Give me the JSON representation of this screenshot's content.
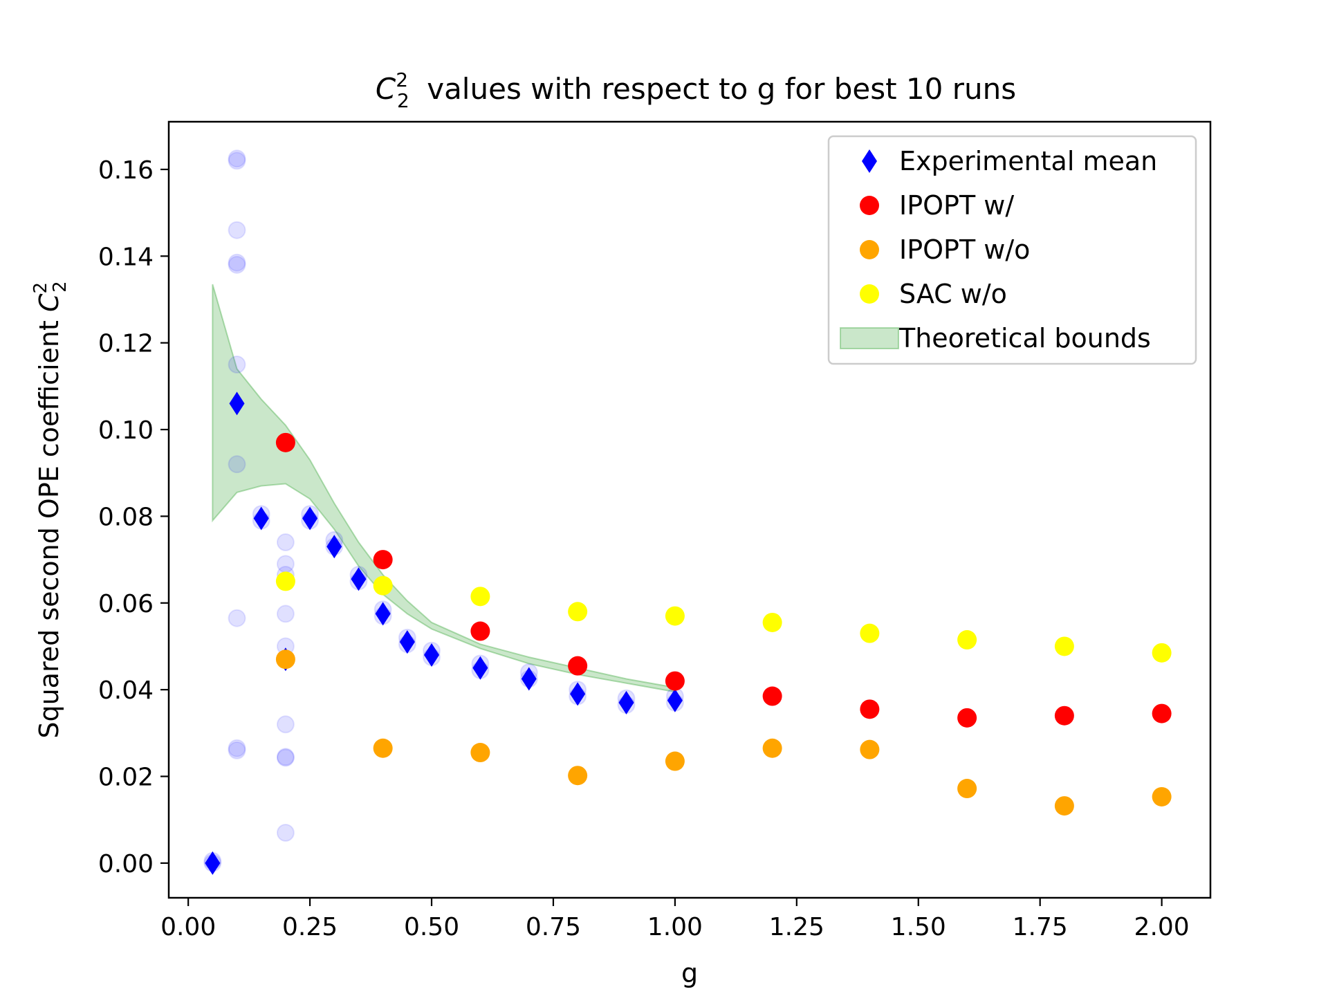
{
  "chart_data": {
    "type": "scatter",
    "title": "values with respect to g for best 10 runs",
    "title_math": {
      "base": "C",
      "sub": "2",
      "sup": "2"
    },
    "xlabel": "g",
    "ylabel": "Squared second OPE coefficient",
    "ylabel_math": {
      "base": "C",
      "sub": "2",
      "sup": "2"
    },
    "xlim": [
      -0.04,
      2.1
    ],
    "ylim": [
      -0.008,
      0.171
    ],
    "x_ticks": [
      0.0,
      0.25,
      0.5,
      0.75,
      1.0,
      1.25,
      1.5,
      1.75,
      2.0
    ],
    "x_tick_labels": [
      "0.00",
      "0.25",
      "0.50",
      "0.75",
      "1.00",
      "1.25",
      "1.50",
      "1.75",
      "2.00"
    ],
    "y_ticks": [
      0.0,
      0.02,
      0.04,
      0.06,
      0.08,
      0.1,
      0.12,
      0.14,
      0.16
    ],
    "y_tick_labels": [
      "0.00",
      "0.02",
      "0.04",
      "0.06",
      "0.08",
      "0.10",
      "0.12",
      "0.14",
      "0.16"
    ],
    "grid": false,
    "legend_position": "top-right",
    "band": {
      "name": "Theoretical bounds",
      "color": "#2ca02c",
      "opacity": 0.25,
      "x": [
        0.05,
        0.1,
        0.15,
        0.2,
        0.25,
        0.3,
        0.35,
        0.4,
        0.45,
        0.5,
        0.6,
        0.7,
        0.8,
        0.9,
        1.0
      ],
      "lower": [
        0.079,
        0.0855,
        0.087,
        0.0875,
        0.084,
        0.077,
        0.0685,
        0.062,
        0.0575,
        0.054,
        0.0495,
        0.046,
        0.0435,
        0.0415,
        0.0395
      ],
      "upper": [
        0.1335,
        0.114,
        0.107,
        0.101,
        0.093,
        0.083,
        0.074,
        0.0665,
        0.0605,
        0.0555,
        0.0505,
        0.0475,
        0.045,
        0.0425,
        0.0405
      ]
    },
    "faded_runs": {
      "color": "#0000ff",
      "opacity": 0.12,
      "points": [
        [
          0.1,
          0.162
        ],
        [
          0.1,
          0.1625
        ],
        [
          0.1,
          0.146
        ],
        [
          0.1,
          0.138
        ],
        [
          0.1,
          0.1385
        ],
        [
          0.1,
          0.115
        ],
        [
          0.1,
          0.092
        ],
        [
          0.1,
          0.0565
        ],
        [
          0.1,
          0.026
        ],
        [
          0.1,
          0.0265
        ],
        [
          0.2,
          0.074
        ],
        [
          0.2,
          0.069
        ],
        [
          0.2,
          0.0665
        ],
        [
          0.2,
          0.0575
        ],
        [
          0.2,
          0.05
        ],
        [
          0.2,
          0.032
        ],
        [
          0.2,
          0.0245
        ],
        [
          0.2,
          0.0243
        ],
        [
          0.2,
          0.007
        ],
        [
          0.05,
          0.0
        ],
        [
          0.05,
          0.0005
        ],
        [
          0.15,
          0.079
        ],
        [
          0.15,
          0.0805
        ],
        [
          0.25,
          0.079
        ],
        [
          0.25,
          0.0805
        ],
        [
          0.3,
          0.073
        ],
        [
          0.3,
          0.0745
        ],
        [
          0.35,
          0.065
        ],
        [
          0.35,
          0.0665
        ],
        [
          0.4,
          0.057
        ],
        [
          0.4,
          0.0585
        ],
        [
          0.45,
          0.0505
        ],
        [
          0.45,
          0.052
        ],
        [
          0.5,
          0.0475
        ],
        [
          0.5,
          0.049
        ],
        [
          0.6,
          0.0445
        ],
        [
          0.6,
          0.046
        ],
        [
          0.7,
          0.0425
        ],
        [
          0.7,
          0.044
        ],
        [
          0.8,
          0.0385
        ],
        [
          0.8,
          0.04
        ],
        [
          0.9,
          0.0365
        ],
        [
          0.9,
          0.038
        ],
        [
          1.0,
          0.037
        ],
        [
          1.0,
          0.0385
        ]
      ]
    },
    "series": [
      {
        "name": "Experimental mean",
        "marker": "diamond",
        "color": "#0000ff",
        "x": [
          0.05,
          0.1,
          0.15,
          0.2,
          0.25,
          0.3,
          0.35,
          0.4,
          0.45,
          0.5,
          0.6,
          0.7,
          0.8,
          0.9,
          1.0
        ],
        "y": [
          0.0,
          0.106,
          0.0795,
          0.047,
          0.0795,
          0.073,
          0.0655,
          0.0575,
          0.051,
          0.048,
          0.045,
          0.0425,
          0.039,
          0.037,
          0.0375
        ]
      },
      {
        "name": "IPOPT w/",
        "marker": "circle",
        "color": "#ff0000",
        "x": [
          0.2,
          0.4,
          0.6,
          0.8,
          1.0,
          1.2,
          1.4,
          1.6,
          1.8,
          2.0
        ],
        "y": [
          0.097,
          0.07,
          0.0535,
          0.0455,
          0.042,
          0.0385,
          0.0355,
          0.0335,
          0.034,
          0.0345
        ]
      },
      {
        "name": "IPOPT w/o",
        "marker": "circle",
        "color": "#ffa500",
        "x": [
          0.2,
          0.4,
          0.6,
          0.8,
          1.0,
          1.2,
          1.4,
          1.6,
          1.8,
          2.0
        ],
        "y": [
          0.047,
          0.0265,
          0.0255,
          0.0202,
          0.0235,
          0.0265,
          0.0262,
          0.0172,
          0.0132,
          0.0153
        ]
      },
      {
        "name": "SAC w/o",
        "marker": "circle",
        "color": "#ffff00",
        "x": [
          0.2,
          0.4,
          0.6,
          0.8,
          1.0,
          1.2,
          1.4,
          1.6,
          1.8,
          2.0
        ],
        "y": [
          0.065,
          0.064,
          0.0615,
          0.058,
          0.057,
          0.0555,
          0.053,
          0.0515,
          0.05,
          0.0485
        ]
      }
    ],
    "legend_order": [
      "Experimental mean",
      "IPOPT w/",
      "IPOPT w/o",
      "SAC w/o",
      "Theoretical bounds"
    ]
  }
}
